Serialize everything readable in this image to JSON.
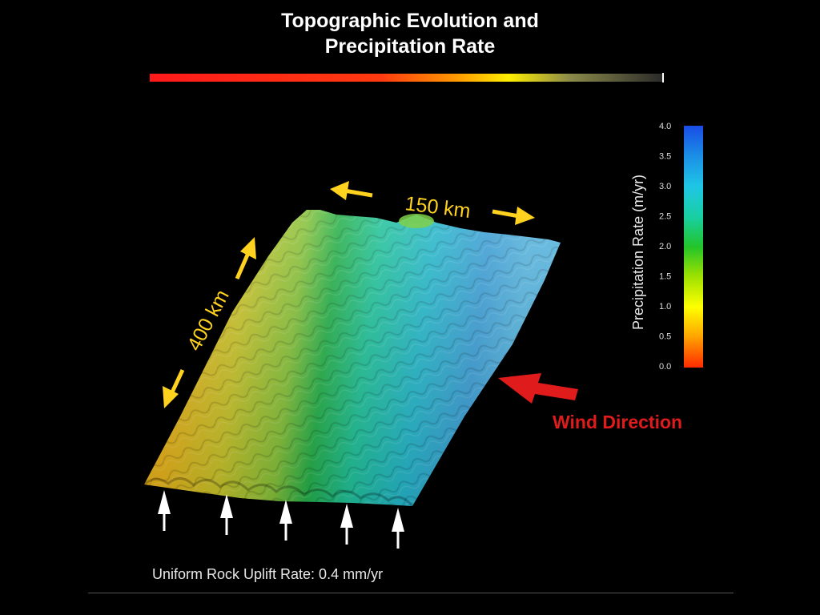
{
  "title": {
    "line1": "Topographic Evolution and",
    "line2": "Precipitation Rate"
  },
  "labels": {
    "width": "150 km",
    "length": "400 km",
    "wind": "Wind Direction",
    "uplift": "Uniform Rock Uplift Rate: 0.4 mm/yr"
  },
  "colorbar": {
    "title": "Precipitation Rate (m/yr)",
    "ticks": [
      "4.0",
      "3.5",
      "3.0",
      "2.5",
      "2.0",
      "1.5",
      "1.0",
      "0.5",
      "0.0"
    ],
    "stops": [
      "#ff2a00",
      "#ffa500",
      "#ffff00",
      "#9be000",
      "#22c42a",
      "#18cfa0",
      "#1fc6e6",
      "#1b8ce6",
      "#1a4ce6"
    ]
  },
  "colors": {
    "arrow_yellow": "#ffd21f",
    "arrow_red": "#e01b1b",
    "arrow_white": "#ffffff"
  }
}
